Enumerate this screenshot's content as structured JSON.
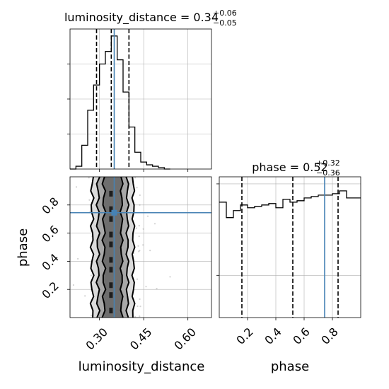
{
  "chart_data": {
    "type": "corner",
    "parameters": [
      "luminosity_distance",
      "phase"
    ],
    "truths": {
      "luminosity_distance": 0.35,
      "phase": 0.745
    },
    "panels": [
      {
        "id": "luminosity_distance-marginal",
        "type": "histogram",
        "title_prefix": "luminosity_distance = 0.34",
        "title_sup": "+0.06",
        "title_sub": "−0.05",
        "xlim": [
          0.2,
          0.68
        ],
        "ylim": [
          0,
          1.0
        ],
        "bins": [
          0.2,
          0.22,
          0.24,
          0.26,
          0.28,
          0.3,
          0.32,
          0.34,
          0.36,
          0.38,
          0.4,
          0.42,
          0.44,
          0.46,
          0.48,
          0.5,
          0.52,
          0.54
        ],
        "counts": [
          0,
          0.02,
          0.17,
          0.42,
          0.6,
          0.75,
          0.84,
          0.95,
          0.78,
          0.55,
          0.3,
          0.12,
          0.05,
          0.03,
          0.02,
          0.01,
          0.0
        ],
        "quantiles": [
          0.29,
          0.34,
          0.4
        ]
      },
      {
        "id": "phase-marginal",
        "type": "histogram",
        "title_prefix": "phase = 0.52",
        "title_sup": "+0.32",
        "title_sub": "−0.36",
        "xlim": [
          0.0,
          1.0
        ],
        "ylim": [
          0,
          1.0
        ],
        "bins": [
          0.0,
          0.05,
          0.1,
          0.15,
          0.2,
          0.25,
          0.3,
          0.35,
          0.4,
          0.45,
          0.5,
          0.55,
          0.6,
          0.65,
          0.7,
          0.75,
          0.8,
          0.85,
          0.9,
          0.95,
          1.0
        ],
        "counts": [
          0.82,
          0.71,
          0.76,
          0.8,
          0.78,
          0.79,
          0.8,
          0.81,
          0.78,
          0.84,
          0.82,
          0.83,
          0.85,
          0.86,
          0.87,
          0.87,
          0.88,
          0.9,
          0.85,
          0.85
        ],
        "quantiles": [
          0.16,
          0.52,
          0.84
        ]
      },
      {
        "id": "2d",
        "type": "contour",
        "x": "luminosity_distance",
        "y": "phase",
        "xlabel": "luminosity_distance",
        "ylabel": "phase",
        "xlim": [
          0.2,
          0.68
        ],
        "ylim": [
          0.0,
          1.0
        ],
        "xticks": [
          "0.30",
          "0.45",
          "0.60"
        ],
        "xtick_values": [
          0.3,
          0.45,
          0.6
        ],
        "yticks": [
          "0.2",
          "0.4",
          "0.6",
          "0.8"
        ],
        "ytick_values": [
          0.2,
          0.4,
          0.6,
          0.8
        ],
        "contour_halfwidths": [
          0.03,
          0.05,
          0.07
        ],
        "contour_center": 0.345
      }
    ],
    "phase_axis": {
      "xlabel": "phase",
      "xticks": [
        "0.2",
        "0.4",
        "0.6",
        "0.8"
      ],
      "xtick_values": [
        0.2,
        0.4,
        0.6,
        0.8
      ]
    },
    "colors": {
      "hist": "#000000",
      "truth": "#4682b4",
      "contour": "#000000",
      "samples": "#9e9e9e"
    }
  }
}
